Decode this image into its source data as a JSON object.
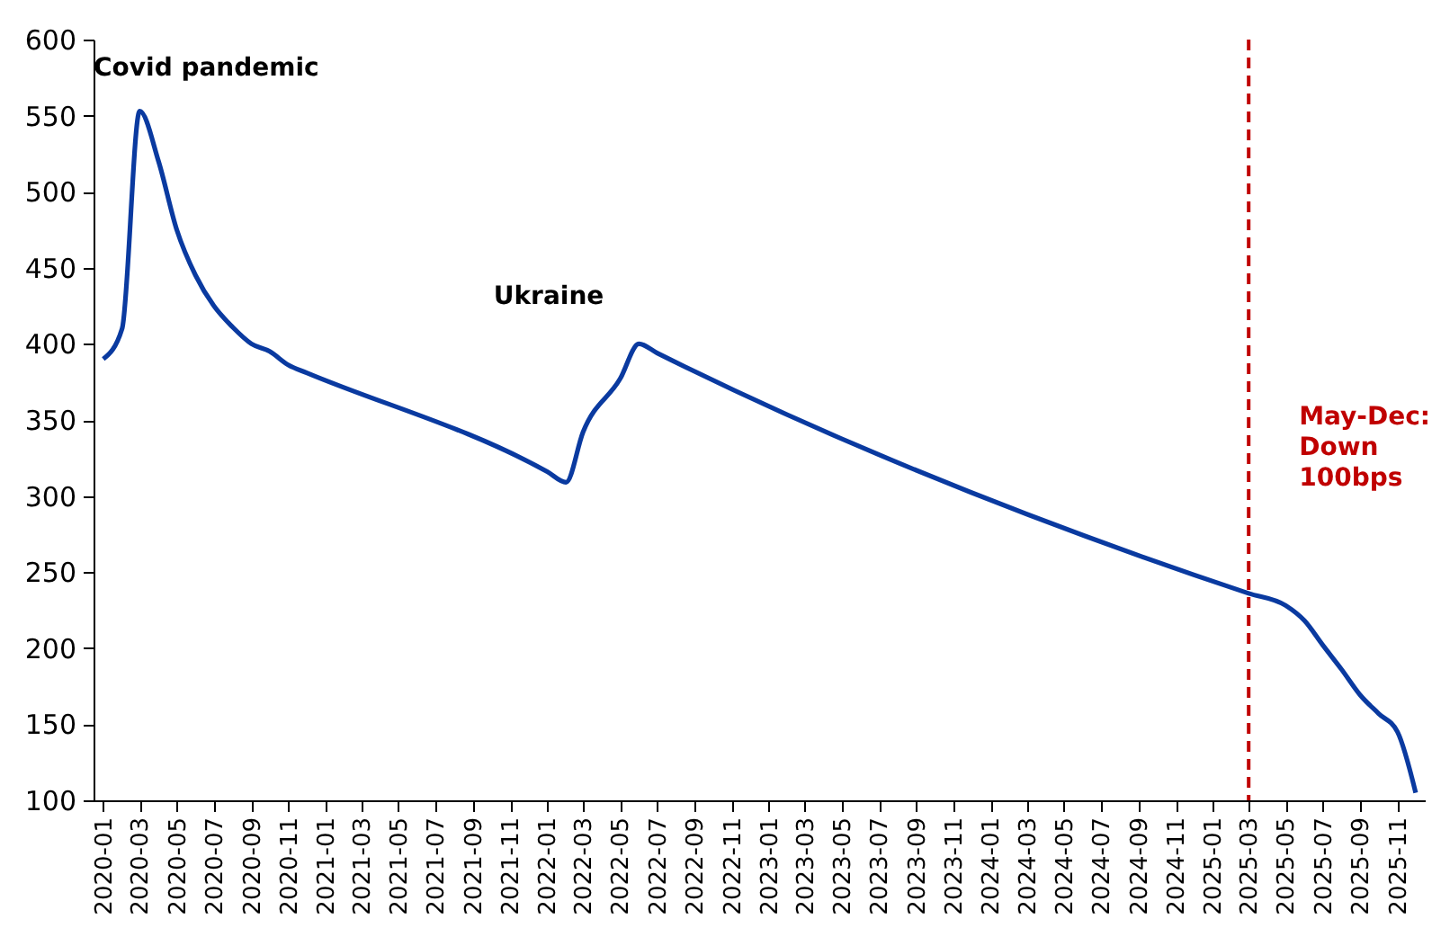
{
  "chart_data": {
    "type": "line",
    "x": [
      "2020-01",
      "2020-02",
      "2020-03",
      "2020-04",
      "2020-05",
      "2020-06",
      "2020-07",
      "2020-08",
      "2020-09",
      "2020-10",
      "2020-11",
      "2020-12",
      "2022-01",
      "2022-02",
      "2022-03",
      "2022-05",
      "2022-06",
      "2022-07",
      "2025-03",
      "2025-05",
      "2025-06",
      "2025-07",
      "2025-08",
      "2025-09",
      "2025-10",
      "2025-11",
      "2025-12"
    ],
    "series": [
      {
        "color": "#0a3aa0",
        "values": [
          390,
          410,
          553,
          520,
          475,
          445,
          425,
          411,
          400,
          395,
          386,
          381,
          316,
          309,
          342,
          377,
          400,
          394,
          236,
          228,
          218,
          202,
          186,
          169,
          157,
          145,
          105
        ]
      }
    ],
    "xlim": [
      "2019-12-16",
      "2025-12-16"
    ],
    "xticks": [
      "2020-01",
      "2020-03",
      "2020-05",
      "2020-07",
      "2020-09",
      "2020-11",
      "2021-01",
      "2021-03",
      "2021-05",
      "2021-07",
      "2021-09",
      "2021-11",
      "2022-01",
      "2022-03",
      "2022-05",
      "2022-07",
      "2022-09",
      "2022-11",
      "2023-01",
      "2023-03",
      "2023-05",
      "2023-07",
      "2023-09",
      "2023-11",
      "2024-01",
      "2024-03",
      "2024-05",
      "2024-07",
      "2024-09",
      "2024-11",
      "2025-01",
      "2025-03",
      "2025-05",
      "2025-07",
      "2025-09",
      "2025-11"
    ],
    "ylim": [
      100,
      600
    ],
    "yticks": [
      100,
      150,
      200,
      250,
      300,
      350,
      400,
      450,
      500,
      550,
      600
    ],
    "annotations": [
      "Covid pandemic",
      "Ukraine"
    ],
    "ref_lines": [
      {
        "axis": "x",
        "value": "2025-03",
        "label": "May-Dec: Down 100bps",
        "color": "#c00000",
        "line_style": "dashed"
      }
    ]
  }
}
